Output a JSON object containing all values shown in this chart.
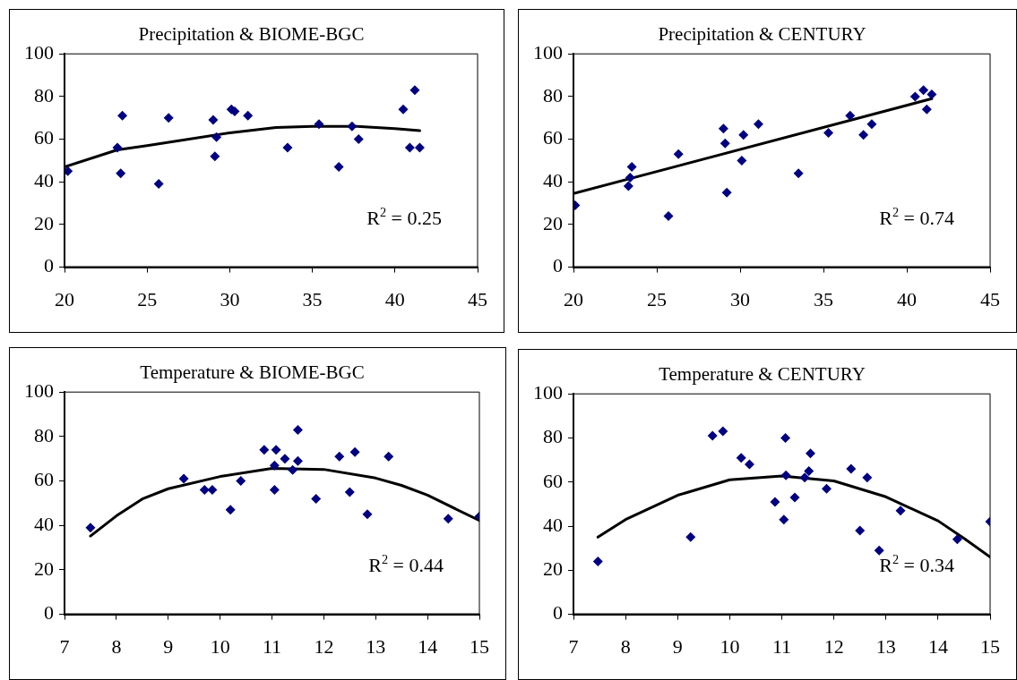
{
  "chart_data": [
    {
      "type": "scatter",
      "title": "Precipitation & BIOME-BGC",
      "marker": "diamond",
      "legend": false,
      "grid": false,
      "xlim": [
        20,
        45
      ],
      "xticks": [
        20,
        25,
        30,
        35,
        40,
        45
      ],
      "ylim": [
        0,
        100
      ],
      "yticks": [
        0,
        20,
        40,
        60,
        80,
        100
      ],
      "annotations": [
        "R$^{2}$ = 0.25"
      ],
      "series": [
        {
          "type": "scatter",
          "color": "#000080",
          "x": [
            20.2,
            23.2,
            23.5,
            23.4,
            25.7,
            26.3,
            29.0,
            29.2,
            29.1,
            30.1,
            30.3,
            31.1,
            33.5,
            35.4,
            36.6,
            37.4,
            37.8,
            40.5,
            41.2,
            40.9,
            41.5
          ],
          "values": [
            45,
            56,
            71,
            44,
            39,
            70,
            69,
            61,
            52,
            74,
            73,
            71,
            56,
            67,
            47,
            66,
            60,
            74,
            83,
            56,
            56
          ]
        },
        {
          "type": "line",
          "color": "#000000",
          "marker": "none",
          "x": [
            20,
            23.2,
            25,
            30,
            32.8,
            35,
            37.7,
            40,
            41.5
          ],
          "values": [
            47,
            55,
            57,
            63,
            65.5,
            66,
            66,
            65,
            64
          ]
        }
      ]
    },
    {
      "type": "scatter",
      "title": "Precipitation & CENTURY",
      "marker": "diamond",
      "legend": false,
      "grid": false,
      "xlim": [
        20,
        45
      ],
      "xticks": [
        20,
        25,
        30,
        35,
        40,
        45
      ],
      "ylim": [
        0,
        100
      ],
      "yticks": [
        0,
        20,
        40,
        60,
        80,
        100
      ],
      "annotations": [
        "R$^{2}$ = 0.74"
      ],
      "series": [
        {
          "type": "scatter",
          "color": "#000080",
          "x": [
            20.1,
            23.3,
            23.4,
            23.5,
            25.7,
            26.3,
            29.0,
            29.1,
            29.2,
            30.1,
            30.2,
            31.1,
            33.5,
            35.3,
            36.6,
            37.4,
            37.9,
            40.5,
            41.0,
            41.2,
            41.5
          ],
          "values": [
            29,
            38,
            42,
            47,
            24,
            53,
            65,
            58,
            35,
            50,
            62,
            67,
            44,
            63,
            71,
            62,
            67,
            80,
            83,
            74,
            81
          ]
        },
        {
          "type": "line",
          "color": "#000000",
          "marker": "none",
          "x": [
            20,
            41.5
          ],
          "values": [
            34.5,
            79
          ]
        }
      ]
    },
    {
      "type": "scatter",
      "title": "Temperature & BIOME-BGC",
      "marker": "diamond",
      "legend": false,
      "grid": false,
      "xlim": [
        7,
        15
      ],
      "xticks": [
        7,
        8,
        9,
        10,
        11,
        12,
        13,
        14,
        15
      ],
      "ylim": [
        0,
        100
      ],
      "yticks": [
        0,
        20,
        40,
        60,
        80,
        100
      ],
      "annotations": [
        "R$^{2}$ = 0.44"
      ],
      "series": [
        {
          "type": "scatter",
          "color": "#000080",
          "x": [
            7.5,
            9.3,
            9.7,
            9.85,
            10.2,
            10.4,
            10.85,
            11.05,
            11.08,
            11.05,
            11.25,
            11.4,
            11.5,
            11.5,
            11.85,
            12.3,
            12.5,
            12.6,
            12.84,
            13.25,
            14.4,
            15.0
          ],
          "values": [
            39,
            61,
            56,
            56,
            47,
            60,
            74,
            67,
            74,
            56,
            70,
            65,
            69,
            83,
            52,
            71,
            55,
            73,
            45,
            71,
            43,
            44
          ]
        },
        {
          "type": "line",
          "color": "#000000",
          "marker": "none",
          "x": [
            7.5,
            8,
            8.5,
            9,
            10,
            11,
            12,
            13,
            13.5,
            14,
            15
          ],
          "values": [
            35.2,
            44.3,
            51.9,
            56.5,
            62,
            65.7,
            65.2,
            61.3,
            58,
            53.6,
            42.2
          ]
        }
      ]
    },
    {
      "type": "scatter",
      "title": "Temperature & CENTURY",
      "marker": "diamond",
      "legend": false,
      "grid": false,
      "xlim": [
        7,
        15
      ],
      "xticks": [
        7,
        8,
        9,
        10,
        11,
        12,
        13,
        14,
        15
      ],
      "ylim": [
        0,
        100
      ],
      "yticks": [
        0,
        20,
        40,
        60,
        80,
        100
      ],
      "annotations": [
        "R$^{2}$ = 0.34"
      ],
      "series": [
        {
          "type": "scatter",
          "color": "#000080",
          "x": [
            7.47,
            9.25,
            9.67,
            9.87,
            10.22,
            10.38,
            10.87,
            11.07,
            11.08,
            11.04,
            11.25,
            11.44,
            11.52,
            11.55,
            11.86,
            12.33,
            12.5,
            12.64,
            12.87,
            13.28,
            14.37,
            15.0
          ],
          "values": [
            24,
            35,
            81,
            83,
            71,
            68,
            51,
            80,
            63,
            43,
            53,
            62,
            65,
            73,
            57,
            66,
            38,
            62,
            29,
            47,
            34,
            42
          ]
        },
        {
          "type": "line",
          "color": "#000000",
          "marker": "none",
          "x": [
            7.47,
            8,
            9,
            10,
            11,
            12,
            13,
            14,
            14.5,
            15
          ],
          "values": [
            35,
            43,
            54,
            61,
            62.7,
            60.5,
            53.3,
            42.4,
            34.4,
            26
          ]
        }
      ]
    }
  ]
}
